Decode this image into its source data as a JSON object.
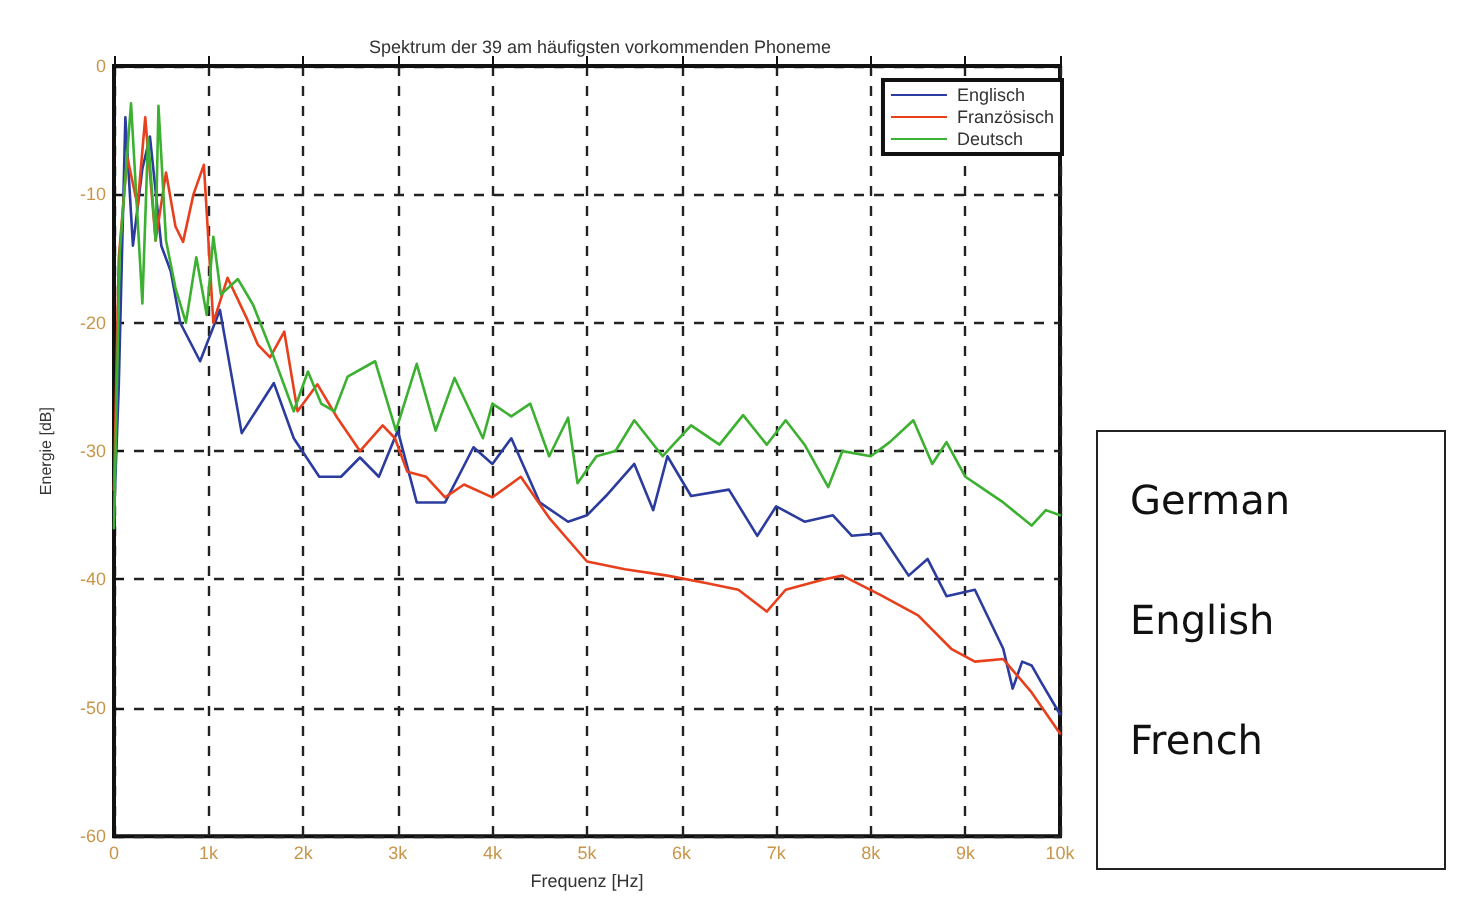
{
  "chart_data": {
    "type": "line",
    "title": "Spektrum der 39 am häufigsten vorkommenden Phoneme",
    "xlabel": "Frequenz [Hz]",
    "ylabel": "Energie [dB]",
    "xlim": [
      0,
      10000
    ],
    "ylim": [
      -60,
      0
    ],
    "xticks": [
      0,
      {
        "value": 1000,
        "label": "1k"
      },
      {
        "value": 2000,
        "label": "2k"
      },
      {
        "value": 3000,
        "label": "3k"
      },
      {
        "value": 4000,
        "label": "4k"
      },
      {
        "value": 5000,
        "label": "5k"
      },
      {
        "value": 6000,
        "label": "6k"
      },
      {
        "value": 7000,
        "label": "7k"
      },
      {
        "value": 8000,
        "label": "8k"
      },
      {
        "value": 9000,
        "label": "9k"
      },
      {
        "value": 10000,
        "label": "10k"
      }
    ],
    "yticks": [
      -60,
      -50,
      -40,
      -30,
      -20,
      -10,
      0
    ],
    "grid": true,
    "legend": "top right",
    "marker": "none",
    "line_style": "solid",
    "annotations": [
      "German",
      "English",
      "French"
    ],
    "series": [
      {
        "name": "Englisch",
        "color": "#2b3c9e",
        "x": [
          0,
          50,
          120,
          200,
          300,
          380,
          500,
          600,
          700,
          910,
          1120,
          1350,
          1690,
          1900,
          2170,
          2400,
          2600,
          2800,
          3000,
          3200,
          3500,
          3800,
          4000,
          4200,
          4500,
          4800,
          5000,
          5200,
          5500,
          5700,
          5850,
          6100,
          6500,
          6800,
          7000,
          7300,
          7600,
          7800,
          8100,
          8400,
          8600,
          8800,
          9100,
          9400,
          9500,
          9600,
          9700,
          9800,
          10000
        ],
        "values": [
          -35,
          -25,
          -4,
          -14,
          -8,
          -5.5,
          -14,
          -16,
          -20,
          -23,
          -19,
          -28.6,
          -24.7,
          -29,
          -32,
          -32,
          -30.5,
          -32,
          -28.4,
          -34,
          -34,
          -29.7,
          -31,
          -29,
          -34,
          -35.5,
          -35,
          -33.5,
          -31,
          -34.6,
          -30.4,
          -33.5,
          -33,
          -36.6,
          -34.3,
          -35.5,
          -35,
          -36.6,
          -36.4,
          -39.7,
          -38.4,
          -41.3,
          -40.8,
          -45.4,
          -48.5,
          -46.4,
          -46.7,
          -48,
          -50.5
        ]
      },
      {
        "name": "Französisch",
        "color": "#e8401c",
        "x": [
          0,
          50,
          140,
          250,
          330,
          440,
          550,
          650,
          730,
          840,
          950,
          1050,
          1200,
          1400,
          1520,
          1650,
          1800,
          1940,
          2150,
          2360,
          2600,
          2840,
          2970,
          3100,
          3300,
          3500,
          3700,
          4000,
          4300,
          4600,
          5000,
          5400,
          5850,
          6270,
          6600,
          6900,
          7100,
          7500,
          7700,
          8100,
          8500,
          8850,
          9100,
          9400,
          9700,
          10000
        ],
        "values": [
          -33,
          -15,
          -7.1,
          -10.9,
          -4,
          -13.6,
          -8.3,
          -12.5,
          -13.7,
          -10,
          -7.7,
          -20,
          -16.5,
          -19.6,
          -21.7,
          -22.7,
          -20.7,
          -26.9,
          -24.8,
          -27.4,
          -30,
          -28,
          -29,
          -31.6,
          -32,
          -33.6,
          -32.6,
          -33.6,
          -32,
          -35.2,
          -38.6,
          -39.2,
          -39.7,
          -40.3,
          -40.8,
          -42.5,
          -40.8,
          -40,
          -39.7,
          -41.2,
          -42.8,
          -45.4,
          -46.4,
          -46.2,
          -48.8,
          -52
        ]
      },
      {
        "name": "Deutsch",
        "color": "#3cb030",
        "x": [
          0,
          60,
          180,
          300,
          360,
          440,
          470,
          550,
          650,
          760,
          870,
          980,
          1050,
          1130,
          1310,
          1470,
          1690,
          1900,
          2050,
          2190,
          2330,
          2470,
          2760,
          2980,
          3200,
          3400,
          3600,
          3900,
          4000,
          4200,
          4400,
          4600,
          4800,
          4900,
          5100,
          5300,
          5500,
          5800,
          6100,
          6400,
          6650,
          6900,
          7100,
          7300,
          7550,
          7700,
          8000,
          8200,
          8450,
          8650,
          8800,
          9000,
          9200,
          9400,
          9700,
          9850,
          10000
        ],
        "values": [
          -36,
          -14.6,
          -2.9,
          -18.5,
          -5.6,
          -13.6,
          -3.1,
          -13.6,
          -17.3,
          -20,
          -14.9,
          -19.4,
          -13.3,
          -17.8,
          -16.6,
          -18.6,
          -22.7,
          -26.9,
          -23.8,
          -26.3,
          -26.9,
          -24.2,
          -23,
          -28.4,
          -23.2,
          -28.4,
          -24.3,
          -29,
          -26.3,
          -27.3,
          -26.3,
          -30.4,
          -27.4,
          -32.5,
          -30.4,
          -30,
          -27.6,
          -30.4,
          -28,
          -29.5,
          -27.2,
          -29.5,
          -27.6,
          -29.5,
          -32.8,
          -30,
          -30.4,
          -29.3,
          -27.6,
          -31,
          -29.3,
          -32,
          -33,
          -34,
          -35.8,
          -34.6,
          -35
        ]
      }
    ]
  }
}
